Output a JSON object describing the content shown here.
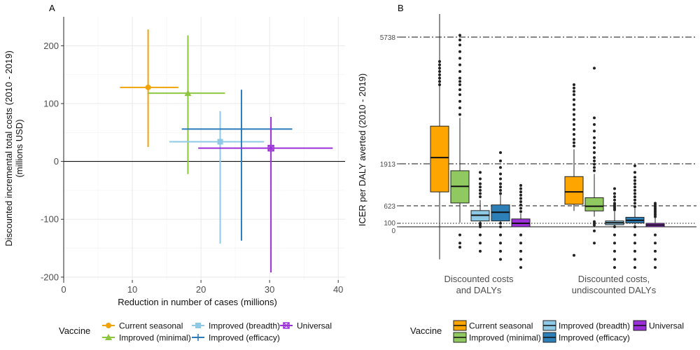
{
  "chart_data": [
    {
      "panel_label": "A",
      "type": "scatter",
      "xlabel": "Reduction in number of cases (millions)",
      "ylabel": [
        "Discounted incremental total costs (2010 - 2019)",
        "(millions USD)"
      ],
      "xlim": [
        0,
        41
      ],
      "ylim": [
        -205,
        250
      ],
      "x_ticks": [
        "0",
        "10",
        "20",
        "30",
        "40"
      ],
      "y_ticks": [
        "-200",
        "-100",
        "0",
        "100",
        "200"
      ],
      "grid": true,
      "legend_title": "Vaccine",
      "legend_position": "bottom",
      "series": [
        {
          "name": "Current seasonal",
          "color": "#f0a30a",
          "marker": "circle",
          "x": 12.3,
          "y": 128,
          "x_range": [
            8.2,
            16.7
          ],
          "y_range": [
            25,
            228
          ]
        },
        {
          "name": "Improved (minimal)",
          "color": "#8dc63f",
          "marker": "triangle",
          "x": 18.1,
          "y": 118,
          "x_range": [
            12.3,
            23.5
          ],
          "y_range": [
            -22,
            218
          ]
        },
        {
          "name": "Improved (breadth)",
          "color": "#8ecae6",
          "marker": "square",
          "x": 22.8,
          "y": 34,
          "x_range": [
            15.4,
            29.2
          ],
          "y_range": [
            -142,
            87
          ]
        },
        {
          "name": "Improved (efficacy)",
          "color": "#2b7bba",
          "marker": "plus",
          "x": 25.9,
          "y": 56,
          "x_range": [
            17.2,
            33.3
          ],
          "y_range": [
            -137,
            124
          ]
        },
        {
          "name": "Universal",
          "color": "#9b30d9",
          "marker": "square-x",
          "x": 30.2,
          "y": 23,
          "x_range": [
            19.6,
            39.2
          ],
          "y_range": [
            -192,
            77
          ]
        }
      ]
    },
    {
      "panel_label": "B",
      "type": "box",
      "ylabel": "ICER per DALY averted (2010 - 2019)",
      "categories": [
        "Discounted costs\nand DALYs",
        "Discounted costs,\nundiscounted DALYs"
      ],
      "y_ticks": [
        "0",
        "100",
        "623",
        "1913",
        "5738"
      ],
      "ylim": [
        -550,
        6200
      ],
      "reference_lines": [
        {
          "value": 5738,
          "style": "dashdot"
        },
        {
          "value": 1913,
          "style": "dashdot"
        },
        {
          "value": 623,
          "style": "dashed"
        },
        {
          "value": 100,
          "style": "dotted"
        },
        {
          "value": 0,
          "style": "solid"
        }
      ],
      "legend_title": "Vaccine",
      "legend_position": "bottom",
      "series": [
        {
          "name": "Current seasonal",
          "color": "#ffa500",
          "boxes": [
            {
              "min": -400,
              "q1": 1050,
              "median": 2100,
              "q3": 3050,
              "max": 6500,
              "outliers_low": [],
              "outliers_high": [
                4300,
                4400,
                4500,
                4600,
                4700,
                4800,
                4900,
                5000
              ]
            },
            {
              "min": 470,
              "q1": 670,
              "median": 1050,
              "q3": 1520,
              "max": 2350,
              "outliers_low": [
                -350
              ],
              "outliers_high": [
                2450,
                2550,
                2650,
                2800,
                2950,
                3100,
                3250,
                3400,
                3550,
                3700,
                3850,
                4000,
                4100,
                4200,
                4300
              ]
            }
          ]
        },
        {
          "name": "Improved (minimal)",
          "color": "#8fc95f",
          "boxes": [
            {
              "min": 120,
              "q1": 710,
              "median": 1220,
              "q3": 1700,
              "max": 3300,
              "outliers_low": [
                -100,
                -200,
                -250
              ],
              "outliers_high": [
                3400,
                3600,
                3800,
                4000,
                4150,
                4300,
                4400,
                4500,
                4700,
                4900,
                5100,
                5300,
                5500,
                5650,
                5800
              ]
            },
            {
              "min": 300,
              "q1": 470,
              "median": 610,
              "q3": 870,
              "max": 1600,
              "outliers_low": [
                150,
                100,
                50,
                -50,
                -200
              ],
              "outliers_high": [
                1700,
                1800,
                1900,
                2000,
                2100,
                2250,
                2400,
                2550,
                2700,
                2900,
                3100,
                3300,
                4800
              ]
            }
          ]
        },
        {
          "name": "Improved (breadth)",
          "color": "#8ecae6",
          "boxes": [
            {
              "min": 120,
              "q1": 170,
              "median": 340,
              "q3": 480,
              "max": 800,
              "outliers_low": [
                100,
                50,
                0,
                -100,
                -200,
                -300
              ],
              "outliers_high": [
                900,
                1000,
                1100,
                1200,
                1300,
                1450,
                1650
              ]
            },
            {
              "min": 20,
              "q1": 60,
              "median": 115,
              "q3": 170,
              "max": 450,
              "outliers_low": [
                0,
                -100,
                -200,
                -300,
                -400,
                -500
              ],
              "outliers_high": [
                500,
                550,
                600,
                650,
                700,
                800,
                900,
                1000,
                1150
              ]
            }
          ]
        },
        {
          "name": "Improved (efficacy)",
          "color": "#2d7fb8",
          "boxes": [
            {
              "min": 130,
              "q1": 170,
              "median": 430,
              "q3": 650,
              "max": 950,
              "outliers_low": [
                100,
                0,
                -100,
                -200,
                -300,
                -400
              ],
              "outliers_high": [
                1000,
                1100,
                1200,
                1300,
                1450,
                1600,
                1800,
                2000,
                2250
              ]
            },
            {
              "min": 50,
              "q1": 110,
              "median": 190,
              "q3": 280,
              "max": 560,
              "outliers_low": [
                0,
                -100,
                -200,
                -300,
                -400,
                -500
              ],
              "outliers_high": [
                600,
                700,
                800,
                900,
                1000,
                1100,
                1200,
                1300,
                1400,
                1500,
                1650,
                1850
              ]
            }
          ]
        },
        {
          "name": "Universal",
          "color": "#9b30d9",
          "boxes": [
            {
              "min": 0,
              "q1": 0,
              "median": 100,
              "q3": 230,
              "max": 400,
              "outliers_low": [
                -100,
                -200,
                -300,
                -400,
                -500
              ],
              "outliers_high": [
                450,
                550,
                650,
                750,
                850,
                950,
                1050,
                1150,
                1250
              ]
            },
            {
              "min": 0,
              "q1": 0,
              "median": 50,
              "q3": 100,
              "max": 260,
              "outliers_low": [
                -100,
                -200,
                -300,
                -400,
                -500
              ],
              "outliers_high": [
                300,
                350,
                400,
                450,
                500,
                550,
                600,
                650,
                700
              ]
            }
          ]
        }
      ]
    }
  ]
}
